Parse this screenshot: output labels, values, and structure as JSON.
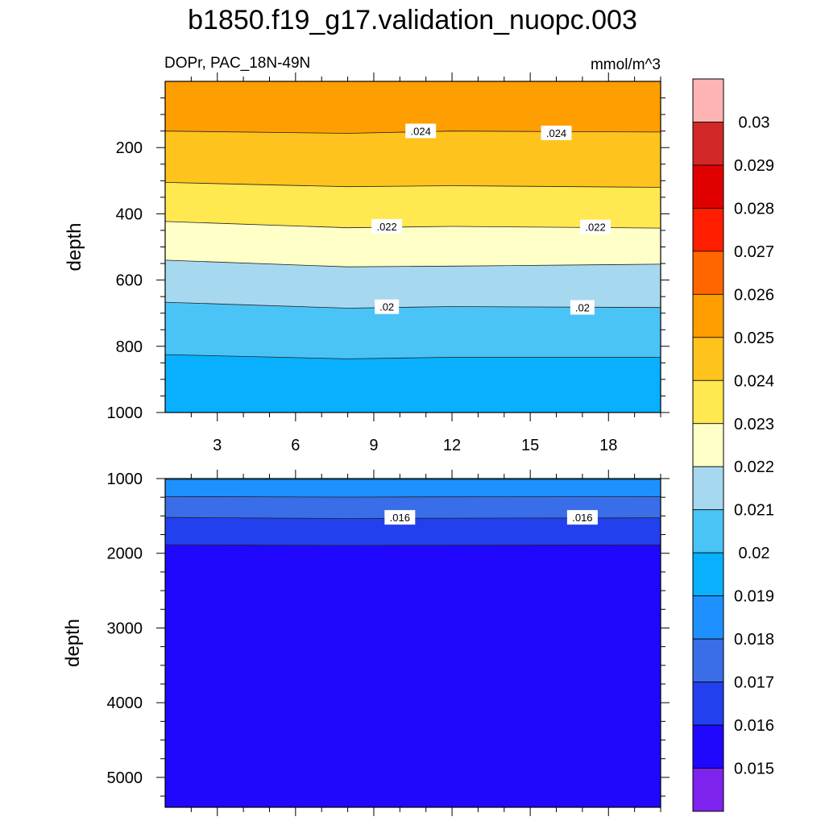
{
  "title": "b1850.f19_g17.validation_nuopc.003",
  "left_string": "DOPr, PAC_18N-49N",
  "right_string": "mmol/m^3",
  "chart_data": [
    {
      "type": "contour",
      "panel": "upper",
      "ylabel": "depth",
      "xlim": [
        1,
        20
      ],
      "x_ticks": [
        3,
        6,
        9,
        12,
        15,
        18
      ],
      "ylim": [
        0,
        1000
      ],
      "y_ticks": [
        200,
        400,
        600,
        800,
        1000
      ],
      "y_reversed": true,
      "contours": [
        {
          "level": 0.024,
          "x": [
            1,
            8,
            12,
            20
          ],
          "depth": [
            150,
            157,
            150,
            153
          ]
        },
        {
          "level": 0.023,
          "x": [
            1,
            8,
            12,
            20
          ],
          "depth": [
            305,
            318,
            315,
            320
          ]
        },
        {
          "level": 0.022,
          "x": [
            1,
            8,
            12,
            20
          ],
          "depth": [
            423,
            442,
            438,
            443
          ]
        },
        {
          "level": 0.021,
          "x": [
            1,
            8,
            12,
            20
          ],
          "depth": [
            540,
            560,
            558,
            552
          ]
        },
        {
          "level": 0.02,
          "x": [
            1,
            8,
            12,
            20
          ],
          "depth": [
            667,
            685,
            680,
            683
          ]
        },
        {
          "level": 0.019,
          "x": [
            1,
            8,
            12,
            20
          ],
          "depth": [
            825,
            838,
            833,
            833
          ]
        }
      ],
      "contour_labels": [
        {
          "text": ".024",
          "x": 10.8,
          "depth": 152
        },
        {
          "text": ".024",
          "x": 16.0,
          "depth": 158
        },
        {
          "text": ".022",
          "x": 9.5,
          "depth": 440
        },
        {
          "text": ".022",
          "x": 17.5,
          "depth": 442
        },
        {
          "text": ".02",
          "x": 9.5,
          "depth": 683
        },
        {
          "text": ".02",
          "x": 17.0,
          "depth": 685
        }
      ]
    },
    {
      "type": "contour",
      "panel": "lower",
      "ylabel": "depth",
      "xlim": [
        1,
        20
      ],
      "x_ticks": [
        3,
        6,
        9,
        12,
        15,
        18
      ],
      "ylim": [
        1000,
        5400
      ],
      "y_ticks": [
        1000,
        2000,
        3000,
        4000,
        5000
      ],
      "y_reversed": true,
      "contours": [
        {
          "level": 0.018,
          "x": [
            1,
            8,
            12,
            20
          ],
          "depth": [
            1012,
            1012,
            1012,
            1012
          ]
        },
        {
          "level": 0.017,
          "x": [
            1,
            8,
            12,
            20
          ],
          "depth": [
            1240,
            1248,
            1245,
            1242
          ]
        },
        {
          "level": 0.016,
          "x": [
            1,
            8,
            12,
            20
          ],
          "depth": [
            1520,
            1535,
            1530,
            1525
          ]
        },
        {
          "level": 0.015,
          "x": [
            1,
            8,
            12,
            20
          ],
          "depth": [
            1885,
            1895,
            1892,
            1888
          ]
        }
      ],
      "contour_labels": [
        {
          "text": ".016",
          "x": 10.0,
          "depth": 1530
        },
        {
          "text": ".016",
          "x": 17.0,
          "depth": 1530
        }
      ]
    }
  ],
  "colorbar": {
    "labels": [
      "0.03",
      "0.029",
      "0.028",
      "0.027",
      "0.026",
      "0.025",
      "0.024",
      "0.023",
      "0.022",
      "0.021",
      "0.02",
      "0.019",
      "0.018",
      "0.017",
      "0.016",
      "0.015"
    ],
    "colors_top_to_bottom": [
      "#ffb4b4",
      "#d42828",
      "#e00000",
      "#ff1e00",
      "#ff6600",
      "#ff9e00",
      "#ffc31e",
      "#ffe850",
      "#ffffc8",
      "#a6d8f0",
      "#4ac4f6",
      "#08b0ff",
      "#1e90ff",
      "#3a6ee8",
      "#2240ee",
      "#2008ff",
      "#7e22ee"
    ]
  }
}
